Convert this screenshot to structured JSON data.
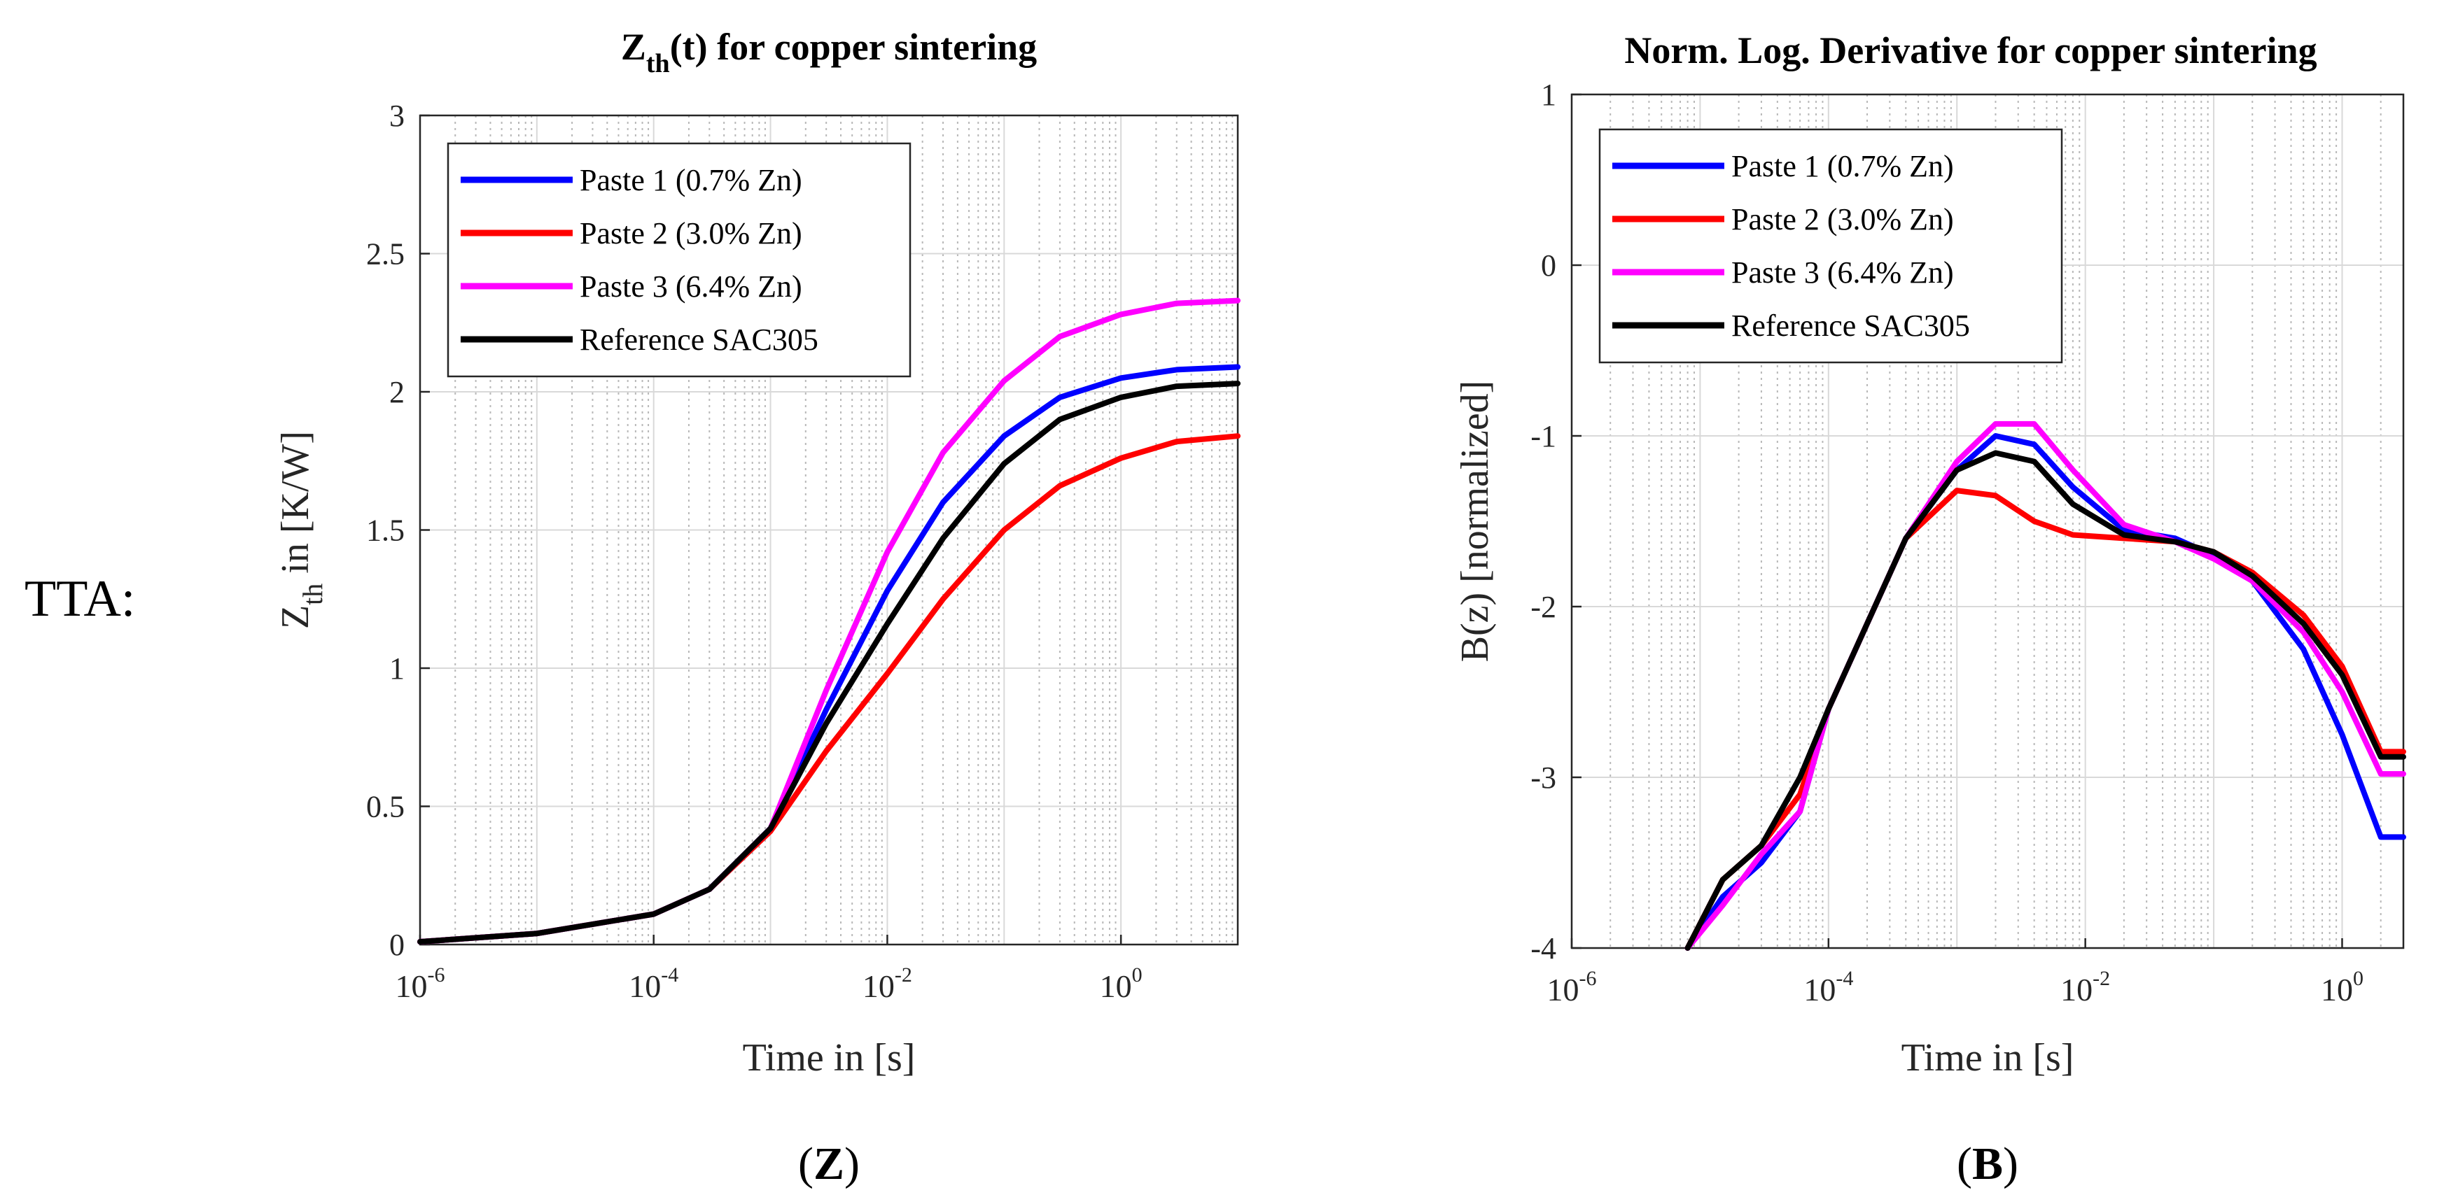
{
  "figure_label": "TTA:",
  "colors": {
    "paste1": "#0000ff",
    "paste2": "#ff0000",
    "paste3": "#ff00ff",
    "reference": "#000000",
    "grid_major": "#d9d9d9",
    "grid_minor": "#b8b8b8",
    "axis": "#262626"
  },
  "chart_data": [
    {
      "type": "line",
      "panel_label": "Z",
      "title_main": "Z",
      "title_sub": "th",
      "title_rest": "(t) for copper sintering",
      "xlabel": "Time in [s]",
      "ylabel_main": "Z",
      "ylabel_sub": "th",
      "ylabel_rest": " in [K/W]",
      "xscale": "log",
      "xlim": [
        1e-06,
        10
      ],
      "ylim": [
        0,
        3
      ],
      "xticks": [
        {
          "base": "10",
          "exp": "-6",
          "value": 1e-06
        },
        {
          "base": "10",
          "exp": "-4",
          "value": 0.0001
        },
        {
          "base": "10",
          "exp": "-2",
          "value": 0.01
        },
        {
          "base": "10",
          "exp": "0",
          "value": 1
        }
      ],
      "yticks": [
        "0",
        "0.5",
        "1",
        "1.5",
        "2",
        "2.5",
        "3"
      ],
      "grid": true,
      "legend_position": "upper-left",
      "series": [
        {
          "name": "Paste 1 (0.7% Zn)",
          "color_key": "paste1",
          "x": [
            1e-06,
            1e-05,
            0.0001,
            0.0003,
            0.001,
            0.003,
            0.01,
            0.03,
            0.1,
            0.3,
            1,
            3,
            10
          ],
          "y": [
            0.01,
            0.04,
            0.11,
            0.2,
            0.42,
            0.85,
            1.28,
            1.6,
            1.84,
            1.98,
            2.05,
            2.08,
            2.09
          ]
        },
        {
          "name": "Paste 2 (3.0% Zn)",
          "color_key": "paste2",
          "x": [
            1e-06,
            1e-05,
            0.0001,
            0.0003,
            0.001,
            0.003,
            0.01,
            0.03,
            0.1,
            0.3,
            1,
            3,
            10
          ],
          "y": [
            0.01,
            0.04,
            0.11,
            0.2,
            0.41,
            0.7,
            0.98,
            1.25,
            1.5,
            1.66,
            1.76,
            1.82,
            1.84
          ]
        },
        {
          "name": "Paste 3 (6.4% Zn)",
          "color_key": "paste3",
          "x": [
            1e-06,
            1e-05,
            0.0001,
            0.0003,
            0.001,
            0.003,
            0.01,
            0.03,
            0.1,
            0.3,
            1,
            3,
            10
          ],
          "y": [
            0.01,
            0.04,
            0.11,
            0.2,
            0.42,
            0.92,
            1.42,
            1.78,
            2.04,
            2.2,
            2.28,
            2.32,
            2.33
          ]
        },
        {
          "name": "Reference SAC305",
          "color_key": "reference",
          "x": [
            1e-06,
            1e-05,
            0.0001,
            0.0003,
            0.001,
            0.003,
            0.01,
            0.03,
            0.1,
            0.3,
            1,
            3,
            10
          ],
          "y": [
            0.01,
            0.04,
            0.11,
            0.2,
            0.42,
            0.8,
            1.16,
            1.47,
            1.74,
            1.9,
            1.98,
            2.02,
            2.03
          ]
        }
      ]
    },
    {
      "type": "line",
      "panel_label": "B",
      "title_main": "Norm. Log. Derivative for copper sintering",
      "title_sub": "",
      "title_rest": "",
      "xlabel": "Time in [s]",
      "ylabel_main": "B(z) [normalized]",
      "ylabel_sub": "",
      "ylabel_rest": "",
      "xscale": "log",
      "xlim": [
        1e-06,
        3
      ],
      "ylim": [
        -4,
        1
      ],
      "xticks": [
        {
          "base": "10",
          "exp": "-6",
          "value": 1e-06
        },
        {
          "base": "10",
          "exp": "-4",
          "value": 0.0001
        },
        {
          "base": "10",
          "exp": "-2",
          "value": 0.01
        },
        {
          "base": "10",
          "exp": "0",
          "value": 1
        }
      ],
      "yticks": [
        "-4",
        "-3",
        "-2",
        "-1",
        "0",
        "1"
      ],
      "grid": true,
      "legend_position": "upper-left",
      "series": [
        {
          "name": "Paste 1 (0.7% Zn)",
          "color_key": "paste1",
          "x": [
            8e-06,
            1.5e-05,
            3e-05,
            6e-05,
            0.0001,
            0.0002,
            0.0004,
            0.001,
            0.002,
            0.004,
            0.008,
            0.02,
            0.05,
            0.1,
            0.2,
            0.5,
            1,
            2,
            3
          ],
          "y": [
            -4.0,
            -3.7,
            -3.5,
            -3.2,
            -2.6,
            -2.1,
            -1.6,
            -1.2,
            -1.0,
            -1.05,
            -1.3,
            -1.55,
            -1.6,
            -1.7,
            -1.85,
            -2.25,
            -2.75,
            -3.35,
            -3.35
          ]
        },
        {
          "name": "Paste 2 (3.0% Zn)",
          "color_key": "paste2",
          "x": [
            8e-06,
            1.5e-05,
            3e-05,
            6e-05,
            0.0001,
            0.0002,
            0.0004,
            0.001,
            0.002,
            0.004,
            0.008,
            0.02,
            0.05,
            0.1,
            0.2,
            0.5,
            1,
            2,
            3
          ],
          "y": [
            -4.0,
            -3.6,
            -3.4,
            -3.1,
            -2.6,
            -2.1,
            -1.6,
            -1.32,
            -1.35,
            -1.5,
            -1.58,
            -1.6,
            -1.62,
            -1.68,
            -1.8,
            -2.05,
            -2.35,
            -2.85,
            -2.85
          ]
        },
        {
          "name": "Paste 3 (6.4% Zn)",
          "color_key": "paste3",
          "x": [
            8e-06,
            1.5e-05,
            3e-05,
            6e-05,
            0.0001,
            0.0002,
            0.0004,
            0.001,
            0.002,
            0.004,
            0.008,
            0.02,
            0.05,
            0.1,
            0.2,
            0.5,
            1,
            2,
            3
          ],
          "y": [
            -4.0,
            -3.75,
            -3.45,
            -3.2,
            -2.6,
            -2.1,
            -1.6,
            -1.15,
            -0.93,
            -0.93,
            -1.2,
            -1.52,
            -1.62,
            -1.72,
            -1.85,
            -2.15,
            -2.5,
            -2.98,
            -2.98
          ]
        },
        {
          "name": "Reference SAC305",
          "color_key": "reference",
          "x": [
            8e-06,
            1.5e-05,
            3e-05,
            6e-05,
            0.0001,
            0.0002,
            0.0004,
            0.001,
            0.002,
            0.004,
            0.008,
            0.02,
            0.05,
            0.1,
            0.2,
            0.5,
            1,
            2,
            3
          ],
          "y": [
            -4.0,
            -3.6,
            -3.4,
            -3.0,
            -2.6,
            -2.1,
            -1.6,
            -1.2,
            -1.1,
            -1.15,
            -1.4,
            -1.58,
            -1.62,
            -1.68,
            -1.82,
            -2.1,
            -2.4,
            -2.88,
            -2.88
          ]
        }
      ]
    }
  ]
}
